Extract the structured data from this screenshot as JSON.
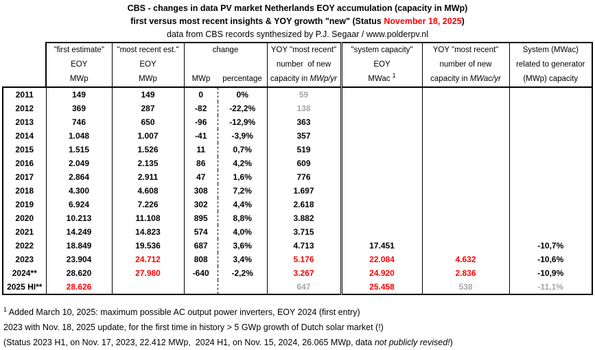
{
  "title": {
    "line1": "CBS - changes in data PV market Netherlands EOY accumulation (capacity in MWp)",
    "line2_prefix": "first versus most recent insights & YOY growth \"new\" (Status ",
    "line2_date": "November 18, 2025",
    "line2_suffix": ")",
    "line3": "data from CBS records synthesized by P.J. Segaar / www.polderpv.nl"
  },
  "colors": {
    "accent_red": "#ff0000",
    "muted_gray": "#a6a6a6",
    "text": "#000000"
  },
  "table": {
    "headers": {
      "first_estimate": {
        "l1": "\"first estimate\"",
        "l2": "EOY",
        "l3": "MWp"
      },
      "most_recent": {
        "l1": "\"most recent est.\"",
        "l2": "EOY",
        "l3": "MWp"
      },
      "change": {
        "l1": "change",
        "sub1": "MWp",
        "sub2": "percentage"
      },
      "yoy_mwp": {
        "l1": "YOY \"most recent\"",
        "l2": "number  of new",
        "l3_prefix": "capacity in ",
        "l3_italic": "MWp/yr"
      },
      "system_capacity": {
        "l1": "\"system capacity\"",
        "l2": "EOY",
        "l3": "MWac ",
        "l3_sup": "1"
      },
      "yoy_mwac": {
        "l1": "YOY \"most recent\"",
        "l2": "number of new",
        "l3_prefix": "capacity in ",
        "l3_italic": "MWac/yr"
      },
      "ratio": {
        "l1": "System (MWac)",
        "l2": "related to generator",
        "l3": "(MWp) capacity"
      }
    },
    "rows": [
      {
        "cells": [
          [
            "2011"
          ],
          [
            "149"
          ],
          [
            "149"
          ],
          [
            "0"
          ],
          [
            "0%"
          ],
          [
            "59",
            "g"
          ],
          [
            ""
          ],
          [
            ""
          ],
          [
            ""
          ]
        ]
      },
      {
        "cells": [
          [
            "2012"
          ],
          [
            "369"
          ],
          [
            "287"
          ],
          [
            "-82"
          ],
          [
            "-22,2%"
          ],
          [
            "138",
            "g"
          ],
          [
            ""
          ],
          [
            ""
          ],
          [
            ""
          ]
        ]
      },
      {
        "cells": [
          [
            "2013"
          ],
          [
            "746"
          ],
          [
            "650"
          ],
          [
            "-96"
          ],
          [
            "-12,9%"
          ],
          [
            "363"
          ],
          [
            ""
          ],
          [
            ""
          ],
          [
            ""
          ]
        ]
      },
      {
        "cells": [
          [
            "2014"
          ],
          [
            "1.048"
          ],
          [
            "1.007"
          ],
          [
            "-41"
          ],
          [
            "-3,9%"
          ],
          [
            "357"
          ],
          [
            ""
          ],
          [
            ""
          ],
          [
            ""
          ]
        ]
      },
      {
        "cells": [
          [
            "2015"
          ],
          [
            "1.515"
          ],
          [
            "1.526"
          ],
          [
            "11"
          ],
          [
            "0,7%"
          ],
          [
            "519"
          ],
          [
            ""
          ],
          [
            ""
          ],
          [
            ""
          ]
        ]
      },
      {
        "cells": [
          [
            "2016"
          ],
          [
            "2.049"
          ],
          [
            "2.135"
          ],
          [
            "86"
          ],
          [
            "4,2%"
          ],
          [
            "609"
          ],
          [
            ""
          ],
          [
            ""
          ],
          [
            ""
          ]
        ]
      },
      {
        "cells": [
          [
            "2017"
          ],
          [
            "2.864"
          ],
          [
            "2.911"
          ],
          [
            "47"
          ],
          [
            "1,6%"
          ],
          [
            "776"
          ],
          [
            ""
          ],
          [
            ""
          ],
          [
            ""
          ]
        ]
      },
      {
        "cells": [
          [
            "2018"
          ],
          [
            "4.300"
          ],
          [
            "4.608"
          ],
          [
            "308"
          ],
          [
            "7,2%"
          ],
          [
            "1.697"
          ],
          [
            ""
          ],
          [
            ""
          ],
          [
            ""
          ]
        ]
      },
      {
        "cells": [
          [
            "2019"
          ],
          [
            "6.924"
          ],
          [
            "7.226"
          ],
          [
            "302"
          ],
          [
            "4,4%"
          ],
          [
            "2.618"
          ],
          [
            ""
          ],
          [
            ""
          ],
          [
            ""
          ]
        ]
      },
      {
        "cells": [
          [
            "2020"
          ],
          [
            "10.213"
          ],
          [
            "11.108"
          ],
          [
            "895"
          ],
          [
            "8,8%"
          ],
          [
            "3.882"
          ],
          [
            ""
          ],
          [
            ""
          ],
          [
            ""
          ]
        ]
      },
      {
        "cells": [
          [
            "2021"
          ],
          [
            "14.249"
          ],
          [
            "14.823"
          ],
          [
            "574"
          ],
          [
            "4,0%"
          ],
          [
            "3.715"
          ],
          [
            ""
          ],
          [
            ""
          ],
          [
            ""
          ]
        ]
      },
      {
        "cells": [
          [
            "2022"
          ],
          [
            "18.849"
          ],
          [
            "19.536"
          ],
          [
            "687"
          ],
          [
            "3,6%"
          ],
          [
            "4.713"
          ],
          [
            "17.451"
          ],
          [
            ""
          ],
          [
            "-10,7%"
          ]
        ]
      },
      {
        "cells": [
          [
            "2023"
          ],
          [
            "23.904"
          ],
          [
            "24.712",
            "r"
          ],
          [
            "808"
          ],
          [
            "3,4%"
          ],
          [
            "5.176",
            "r"
          ],
          [
            "22.084",
            "r"
          ],
          [
            "4.632",
            "r"
          ],
          [
            "-10,6%"
          ]
        ]
      },
      {
        "cells": [
          [
            "2024**"
          ],
          [
            "28.620"
          ],
          [
            "27.980",
            "r"
          ],
          [
            "-640"
          ],
          [
            "-2,2%"
          ],
          [
            "3.267",
            "r"
          ],
          [
            "24.920",
            "r"
          ],
          [
            "2.836",
            "r"
          ],
          [
            "-10,9%"
          ]
        ]
      },
      {
        "cells": [
          [
            "2025 HI**"
          ],
          [
            "28.626",
            "r"
          ],
          [
            ""
          ],
          [
            ""
          ],
          [
            ""
          ],
          [
            "647",
            "g"
          ],
          [
            "25.458",
            "r"
          ],
          [
            "538",
            "g"
          ],
          [
            "-11,1%",
            "g"
          ]
        ]
      }
    ]
  },
  "chart_data": {
    "type": "table",
    "title": "CBS - changes in data PV market Netherlands EOY accumulation (capacity in MWp)",
    "columns": [
      "year",
      "first estimate EOY MWp",
      "most recent est. EOY MWp",
      "change MWp",
      "change percentage",
      "YOY most recent number of new capacity MWp/yr",
      "system capacity EOY MWac",
      "YOY most recent number of new capacity MWac/yr",
      "System (MWac) related to generator (MWp) capacity"
    ],
    "years": [
      "2011",
      "2012",
      "2013",
      "2014",
      "2015",
      "2016",
      "2017",
      "2018",
      "2019",
      "2020",
      "2021",
      "2022",
      "2023",
      "2024**",
      "2025 HI**"
    ],
    "first_estimate_mwp": [
      149,
      369,
      746,
      1048,
      1515,
      2049,
      2864,
      4300,
      6924,
      10213,
      14249,
      18849,
      23904,
      28620,
      28626
    ],
    "most_recent_mwp": [
      149,
      287,
      650,
      1007,
      1526,
      2135,
      2911,
      4608,
      7226,
      11108,
      14823,
      19536,
      24712,
      27980,
      null
    ],
    "change_mwp": [
      0,
      -82,
      -96,
      -41,
      11,
      86,
      47,
      308,
      302,
      895,
      574,
      687,
      808,
      -640,
      null
    ],
    "change_pct": [
      "0%",
      "-22,2%",
      "-12,9%",
      "-3,9%",
      "0,7%",
      "4,2%",
      "1,6%",
      "7,2%",
      "4,4%",
      "8,8%",
      "4,0%",
      "3,6%",
      "3,4%",
      "-2,2%",
      null
    ],
    "yoy_new_mwp": [
      59,
      138,
      363,
      357,
      519,
      609,
      776,
      1697,
      2618,
      3882,
      3715,
      4713,
      5176,
      3267,
      647
    ],
    "system_capacity_mwac": [
      null,
      null,
      null,
      null,
      null,
      null,
      null,
      null,
      null,
      null,
      null,
      17451,
      22084,
      24920,
      25458
    ],
    "yoy_new_mwac": [
      null,
      null,
      null,
      null,
      null,
      null,
      null,
      null,
      null,
      null,
      null,
      null,
      4632,
      2836,
      538
    ],
    "ac_dc_ratio_pct": [
      null,
      null,
      null,
      null,
      null,
      null,
      null,
      null,
      null,
      null,
      null,
      "-10,7%",
      "-10,6%",
      "-10,9%",
      "-11,1%"
    ]
  },
  "footnotes": {
    "f1_sup": "1",
    "f1_text": " Added March 10, 2025: maximum possible AC output power inverters, EOY 2024 (first entry)",
    "f2": "2023 with Nov. 18, 2025 update, for the first time in history > 5 GWp growth of Dutch solar market (!)",
    "f3_prefix": "(Status 2023 H1, on Nov. 17, 2023, 22.412 MWp,  2024 H1, on Nov. 15, 2024, 26.065 MWp, data ",
    "f3_italic": "not publicly revised!",
    "f3_suffix": ")"
  }
}
